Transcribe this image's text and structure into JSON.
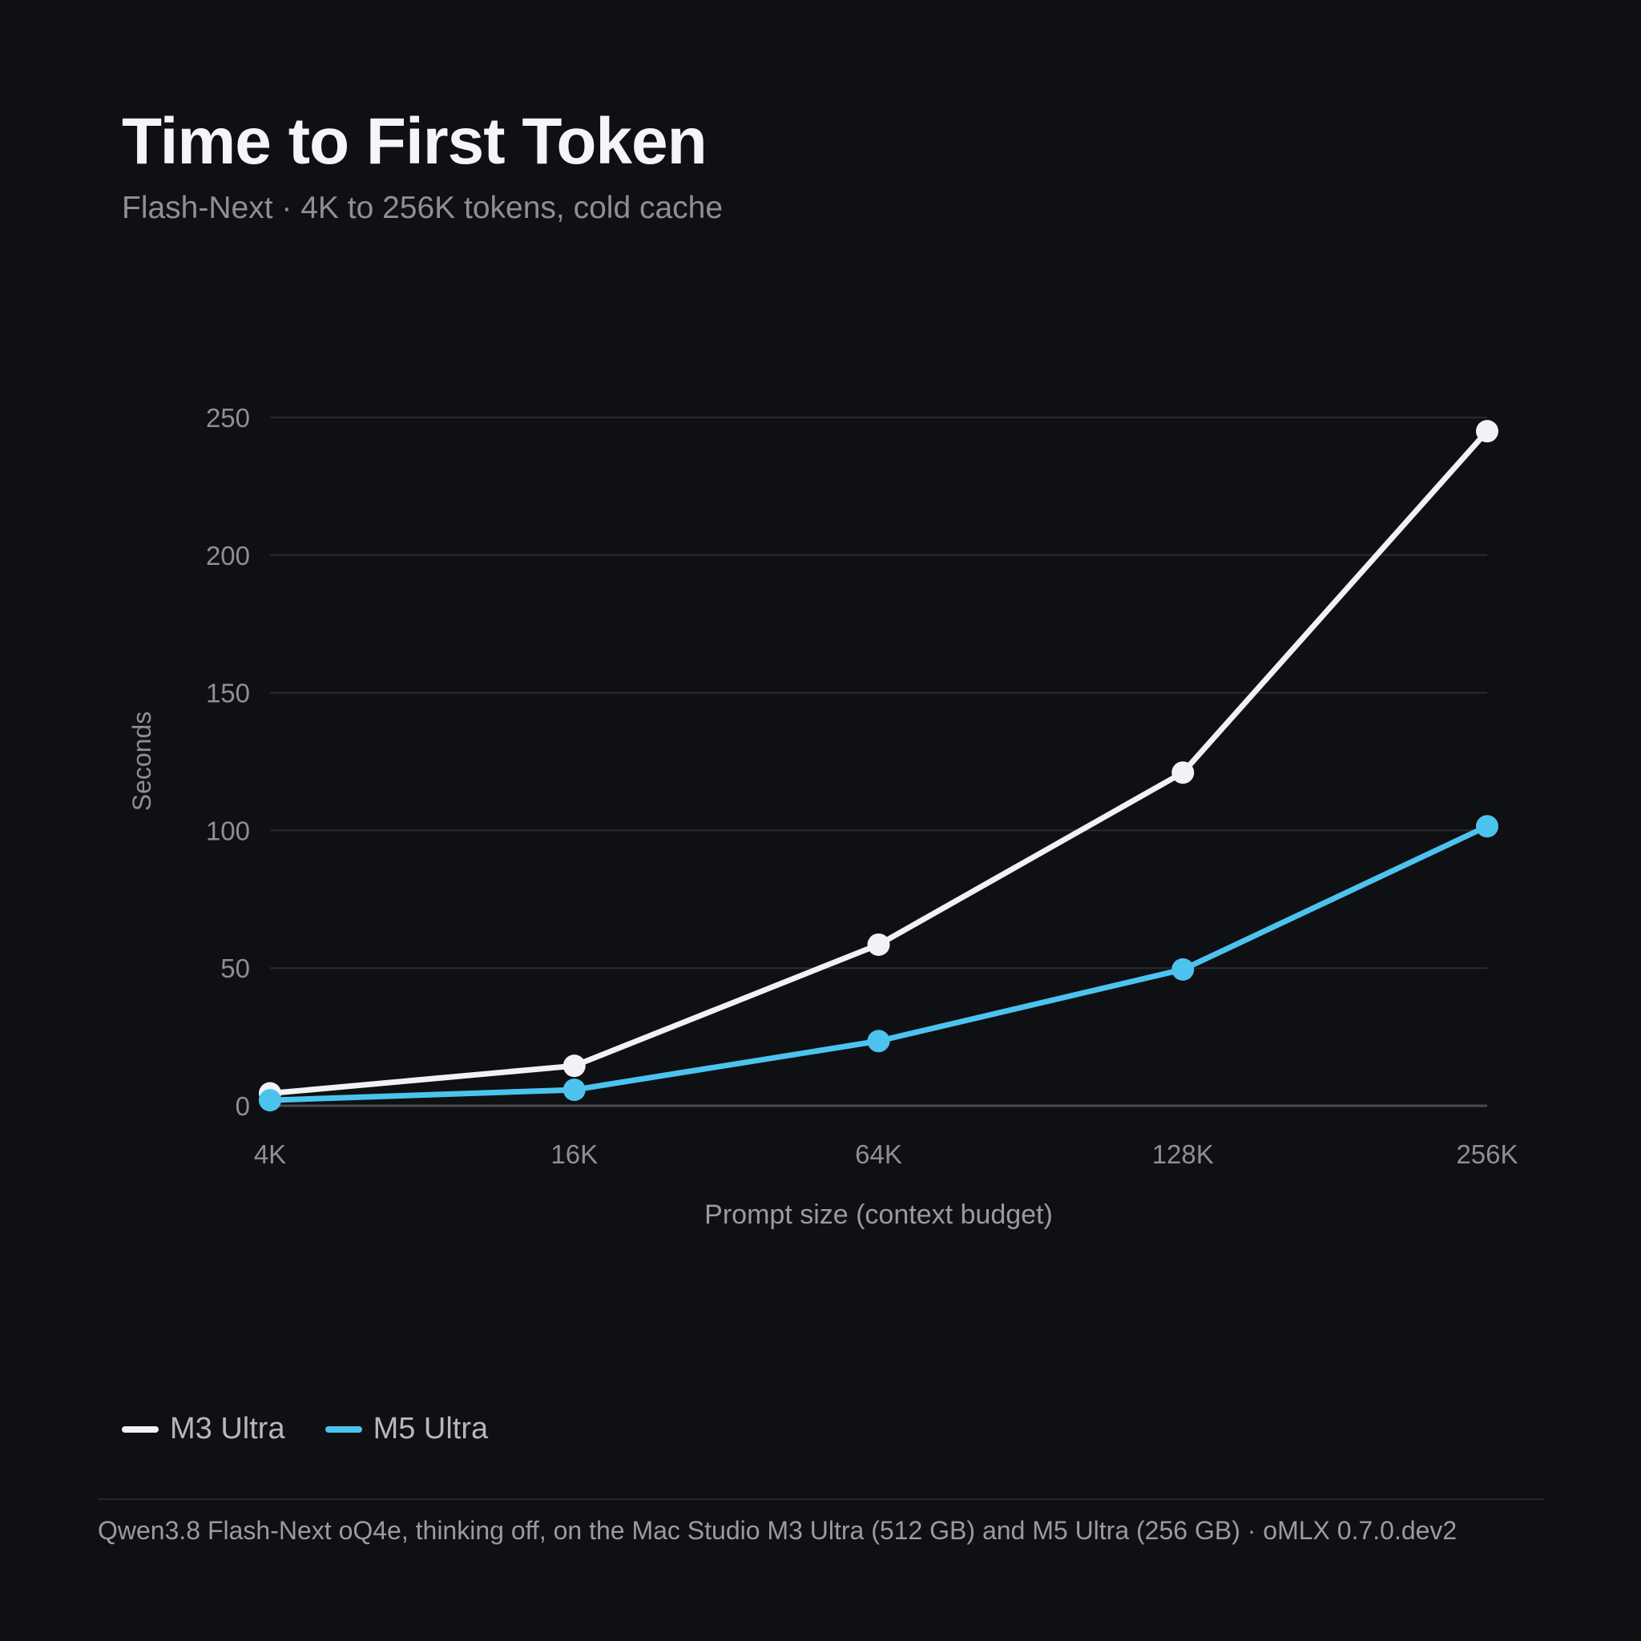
{
  "title": "Time to First Token",
  "subtitle": "Flash-Next · 4K to 256K tokens, cold cache",
  "colors": {
    "background": "#0f1013",
    "m3": "#f2f2f4",
    "m5": "#4cc3ee",
    "grid": "#2a2b30",
    "tick_text": "#8e8f96"
  },
  "chart_data": {
    "type": "line",
    "categories": [
      "4K",
      "16K",
      "64K",
      "128K",
      "256K"
    ],
    "xlabel": "Prompt size (context budget)",
    "ylabel": "Seconds",
    "ylim": [
      0,
      250
    ],
    "yticks": [
      0,
      50,
      100,
      150,
      200,
      250
    ],
    "grid": true,
    "legend": "bottom-left",
    "series": [
      {
        "name": "M3 Ultra",
        "color": "#f2f2f4",
        "values": [
          4.5,
          14.5,
          58.5,
          121,
          245
        ]
      },
      {
        "name": "M5 Ultra",
        "color": "#4cc3ee",
        "values": [
          2,
          5.8,
          23.5,
          49.5,
          101.5
        ]
      }
    ]
  },
  "legend": {
    "items": [
      {
        "label": "M3 Ultra",
        "color": "#f2f2f4"
      },
      {
        "label": "M5 Ultra",
        "color": "#4cc3ee"
      }
    ]
  },
  "footer": "Qwen3.8 Flash-Next oQ4e, thinking off, on the Mac Studio M3 Ultra (512 GB) and M5 Ultra (256 GB) · oMLX 0.7.0.dev2"
}
